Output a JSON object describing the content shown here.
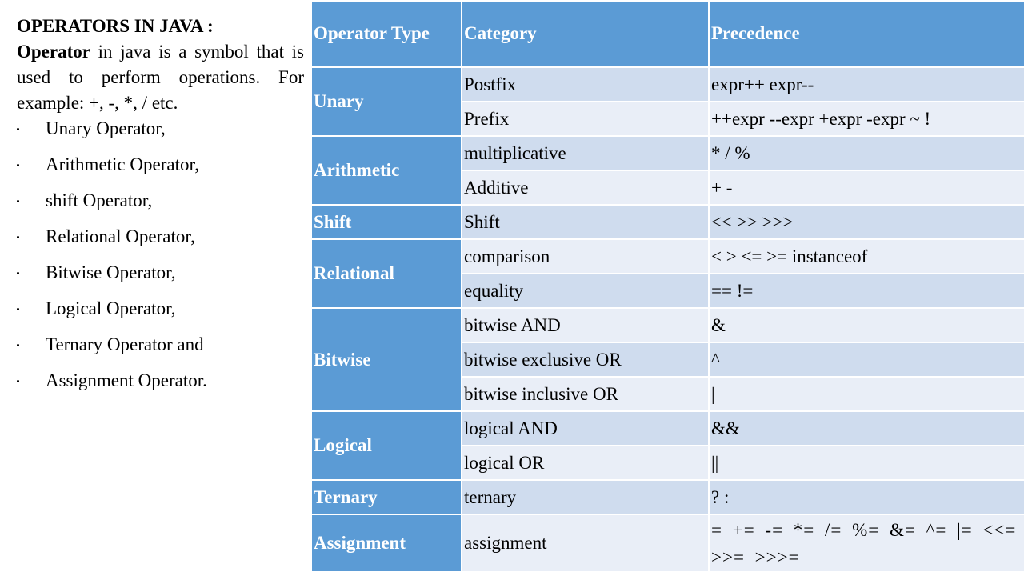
{
  "slide": {
    "title": "OPERATORS IN JAVA :",
    "intro_bold": "Operator",
    "intro_rest": " in java is a symbol that is used to perform operations. For example: +, -, *, / etc.",
    "bullets": [
      "Unary Operator,",
      "Arithmetic Operator,",
      "shift Operator,",
      "Relational Operator,",
      "Bitwise Operator,",
      "Logical Operator,",
      "Ternary Operator and",
      "Assignment Operator."
    ]
  },
  "table": {
    "headers": [
      "Operator Type",
      "Category",
      "Precedence"
    ],
    "groups": [
      {
        "type": "Unary",
        "rows": [
          [
            "Postfix",
            "expr++ expr--"
          ],
          [
            "Prefix",
            "++expr --expr +expr -expr ~ !"
          ]
        ]
      },
      {
        "type": "Arithmetic",
        "rows": [
          [
            "multiplicative",
            "* / %"
          ],
          [
            "Additive",
            "+ -"
          ]
        ]
      },
      {
        "type": "Shift",
        "rows": [
          [
            "Shift",
            "<< >> >>>"
          ]
        ]
      },
      {
        "type": "Relational",
        "rows": [
          [
            "comparison",
            "< > <= >= instanceof"
          ],
          [
            "equality",
            "== !="
          ]
        ]
      },
      {
        "type": "Bitwise",
        "rows": [
          [
            "bitwise AND",
            "&"
          ],
          [
            "bitwise exclusive OR",
            "^"
          ],
          [
            "bitwise inclusive OR",
            "|"
          ]
        ]
      },
      {
        "type": "Logical",
        "rows": [
          [
            "logical AND",
            "&&"
          ],
          [
            "logical OR",
            "||"
          ]
        ]
      },
      {
        "type": "Ternary",
        "rows": [
          [
            "ternary",
            "? :"
          ]
        ]
      },
      {
        "type": "Assignment",
        "rows": [
          [
            "assignment",
            "= += -= *= /= %= &= ^= |= <<= >>= >>>="
          ]
        ]
      }
    ]
  },
  "colors": {
    "header_blue": "#5b9bd5",
    "row_dark": "#cfdcee",
    "row_light": "#e9eef7"
  }
}
